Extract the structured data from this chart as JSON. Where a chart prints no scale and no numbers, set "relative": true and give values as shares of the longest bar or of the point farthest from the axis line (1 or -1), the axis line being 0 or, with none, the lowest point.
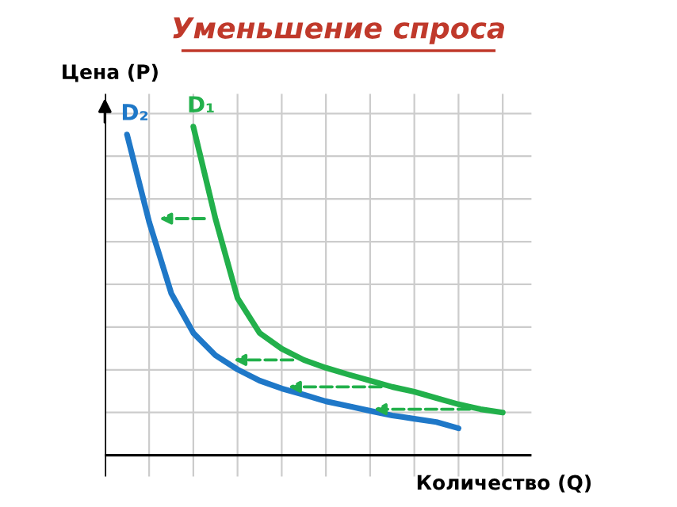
{
  "chart_data": {
    "type": "line",
    "title": "Уменьшение спроса",
    "xlabel": "Количество (Q)",
    "ylabel": "Цена (P)",
    "relative": true,
    "grid": true,
    "tick_labels": false,
    "marker": "none",
    "line_style": "solid",
    "categories": [
      null,
      null,
      null,
      null,
      null,
      null,
      null,
      null,
      null,
      null,
      null,
      null,
      null,
      null,
      null,
      null,
      null,
      null,
      null,
      null
    ],
    "series": [
      {
        "name": "D₂",
        "color": "#1f78c8",
        "values": [
          null,
          0.976,
          0.71,
          0.493,
          0.372,
          0.304,
          0.261,
          0.227,
          0.203,
          0.184,
          0.164,
          0.15,
          0.135,
          0.121,
          0.111,
          0.101,
          0.082,
          null,
          null,
          null
        ]
      },
      {
        "name": "D₁",
        "color": "#22b04b",
        "values": [
          null,
          null,
          null,
          null,
          1.0,
          0.72,
          0.478,
          0.372,
          0.324,
          0.29,
          0.266,
          0.246,
          0.227,
          0.208,
          0.193,
          0.174,
          0.155,
          0.14,
          0.13,
          null
        ]
      }
    ]
  }
}
